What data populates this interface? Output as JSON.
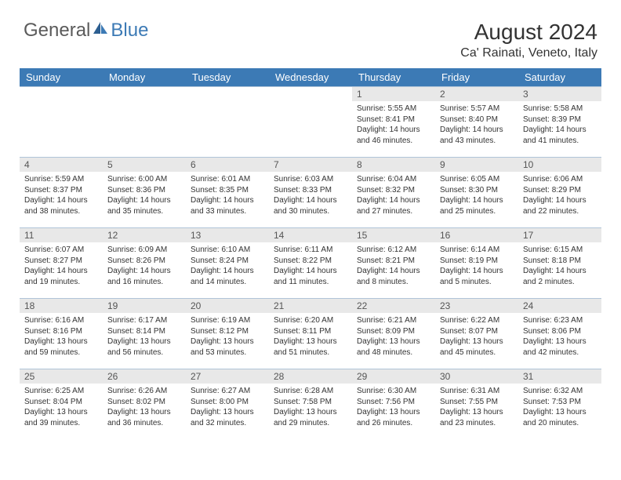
{
  "logo": {
    "text_general": "General",
    "text_blue": "Blue"
  },
  "header": {
    "month_title": "August 2024",
    "location": "Ca' Rainati, Veneto, Italy"
  },
  "colors": {
    "header_bg": "#3c7ab5",
    "header_text": "#ffffff",
    "daynum_bg": "#e8e8e8",
    "border": "#b0c4d8"
  },
  "day_labels": [
    "Sunday",
    "Monday",
    "Tuesday",
    "Wednesday",
    "Thursday",
    "Friday",
    "Saturday"
  ],
  "weeks": [
    [
      null,
      null,
      null,
      null,
      {
        "n": "1",
        "sr": "5:55 AM",
        "ss": "8:41 PM",
        "dl": "14 hours and 46 minutes."
      },
      {
        "n": "2",
        "sr": "5:57 AM",
        "ss": "8:40 PM",
        "dl": "14 hours and 43 minutes."
      },
      {
        "n": "3",
        "sr": "5:58 AM",
        "ss": "8:39 PM",
        "dl": "14 hours and 41 minutes."
      }
    ],
    [
      {
        "n": "4",
        "sr": "5:59 AM",
        "ss": "8:37 PM",
        "dl": "14 hours and 38 minutes."
      },
      {
        "n": "5",
        "sr": "6:00 AM",
        "ss": "8:36 PM",
        "dl": "14 hours and 35 minutes."
      },
      {
        "n": "6",
        "sr": "6:01 AM",
        "ss": "8:35 PM",
        "dl": "14 hours and 33 minutes."
      },
      {
        "n": "7",
        "sr": "6:03 AM",
        "ss": "8:33 PM",
        "dl": "14 hours and 30 minutes."
      },
      {
        "n": "8",
        "sr": "6:04 AM",
        "ss": "8:32 PM",
        "dl": "14 hours and 27 minutes."
      },
      {
        "n": "9",
        "sr": "6:05 AM",
        "ss": "8:30 PM",
        "dl": "14 hours and 25 minutes."
      },
      {
        "n": "10",
        "sr": "6:06 AM",
        "ss": "8:29 PM",
        "dl": "14 hours and 22 minutes."
      }
    ],
    [
      {
        "n": "11",
        "sr": "6:07 AM",
        "ss": "8:27 PM",
        "dl": "14 hours and 19 minutes."
      },
      {
        "n": "12",
        "sr": "6:09 AM",
        "ss": "8:26 PM",
        "dl": "14 hours and 16 minutes."
      },
      {
        "n": "13",
        "sr": "6:10 AM",
        "ss": "8:24 PM",
        "dl": "14 hours and 14 minutes."
      },
      {
        "n": "14",
        "sr": "6:11 AM",
        "ss": "8:22 PM",
        "dl": "14 hours and 11 minutes."
      },
      {
        "n": "15",
        "sr": "6:12 AM",
        "ss": "8:21 PM",
        "dl": "14 hours and 8 minutes."
      },
      {
        "n": "16",
        "sr": "6:14 AM",
        "ss": "8:19 PM",
        "dl": "14 hours and 5 minutes."
      },
      {
        "n": "17",
        "sr": "6:15 AM",
        "ss": "8:18 PM",
        "dl": "14 hours and 2 minutes."
      }
    ],
    [
      {
        "n": "18",
        "sr": "6:16 AM",
        "ss": "8:16 PM",
        "dl": "13 hours and 59 minutes."
      },
      {
        "n": "19",
        "sr": "6:17 AM",
        "ss": "8:14 PM",
        "dl": "13 hours and 56 minutes."
      },
      {
        "n": "20",
        "sr": "6:19 AM",
        "ss": "8:12 PM",
        "dl": "13 hours and 53 minutes."
      },
      {
        "n": "21",
        "sr": "6:20 AM",
        "ss": "8:11 PM",
        "dl": "13 hours and 51 minutes."
      },
      {
        "n": "22",
        "sr": "6:21 AM",
        "ss": "8:09 PM",
        "dl": "13 hours and 48 minutes."
      },
      {
        "n": "23",
        "sr": "6:22 AM",
        "ss": "8:07 PM",
        "dl": "13 hours and 45 minutes."
      },
      {
        "n": "24",
        "sr": "6:23 AM",
        "ss": "8:06 PM",
        "dl": "13 hours and 42 minutes."
      }
    ],
    [
      {
        "n": "25",
        "sr": "6:25 AM",
        "ss": "8:04 PM",
        "dl": "13 hours and 39 minutes."
      },
      {
        "n": "26",
        "sr": "6:26 AM",
        "ss": "8:02 PM",
        "dl": "13 hours and 36 minutes."
      },
      {
        "n": "27",
        "sr": "6:27 AM",
        "ss": "8:00 PM",
        "dl": "13 hours and 32 minutes."
      },
      {
        "n": "28",
        "sr": "6:28 AM",
        "ss": "7:58 PM",
        "dl": "13 hours and 29 minutes."
      },
      {
        "n": "29",
        "sr": "6:30 AM",
        "ss": "7:56 PM",
        "dl": "13 hours and 26 minutes."
      },
      {
        "n": "30",
        "sr": "6:31 AM",
        "ss": "7:55 PM",
        "dl": "13 hours and 23 minutes."
      },
      {
        "n": "31",
        "sr": "6:32 AM",
        "ss": "7:53 PM",
        "dl": "13 hours and 20 minutes."
      }
    ]
  ],
  "labels": {
    "sunrise_prefix": "Sunrise: ",
    "sunset_prefix": "Sunset: ",
    "daylight_prefix": "Daylight: "
  }
}
